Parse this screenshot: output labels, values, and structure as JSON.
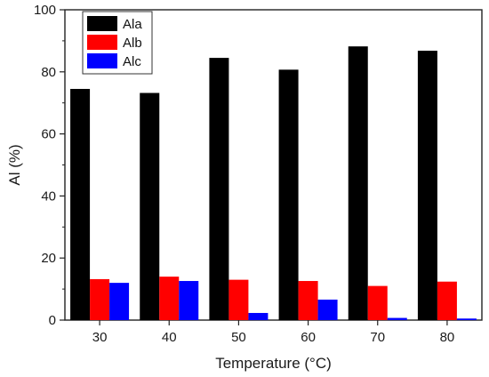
{
  "chart_data": {
    "type": "bar",
    "categories": [
      "30",
      "40",
      "50",
      "60",
      "70",
      "80"
    ],
    "series": [
      {
        "name": "Ala",
        "color": "#000000",
        "values": [
          74.5,
          73.2,
          84.5,
          80.7,
          88.2,
          86.8
        ]
      },
      {
        "name": "Alb",
        "color": "#ff0000",
        "values": [
          13.2,
          14.0,
          13.0,
          12.6,
          11.0,
          12.4
        ]
      },
      {
        "name": "Alc",
        "color": "#0000ff",
        "values": [
          12.0,
          12.6,
          2.3,
          6.6,
          0.7,
          0.5
        ]
      }
    ],
    "xlabel": "Temperature (°C)",
    "ylabel": "Al (%)",
    "ylim": [
      0,
      100
    ],
    "yticks": [
      0,
      20,
      40,
      60,
      80,
      100
    ],
    "legend_position": "top-left",
    "grid": false
  }
}
